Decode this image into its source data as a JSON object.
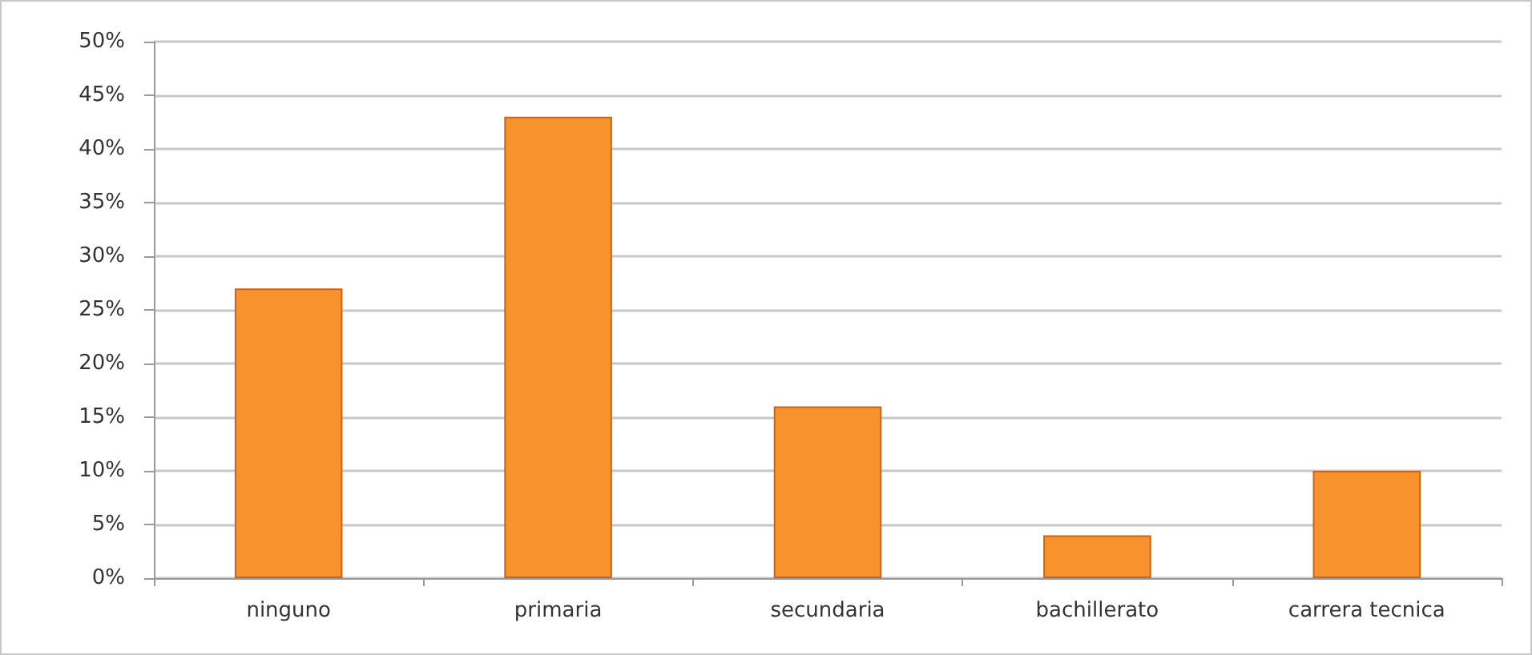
{
  "chart_data": {
    "type": "bar",
    "categories": [
      "ninguno",
      "primaria",
      "secundaria",
      "bachillerato",
      "carrera tecnica"
    ],
    "values": [
      27,
      43,
      16,
      4,
      10
    ],
    "color": "#f7922c",
    "ylim": [
      0,
      50
    ],
    "yticks": [
      {
        "value": 0,
        "label": "0%"
      },
      {
        "value": 5,
        "label": "5%"
      },
      {
        "value": 10,
        "label": "10%"
      },
      {
        "value": 15,
        "label": "15%"
      },
      {
        "value": 20,
        "label": "20%"
      },
      {
        "value": 25,
        "label": "25%"
      },
      {
        "value": 30,
        "label": "30%"
      },
      {
        "value": 35,
        "label": "35%"
      },
      {
        "value": 40,
        "label": "40%"
      },
      {
        "value": 45,
        "label": "45%"
      },
      {
        "value": 50,
        "label": "50%"
      }
    ],
    "grid": "y"
  }
}
